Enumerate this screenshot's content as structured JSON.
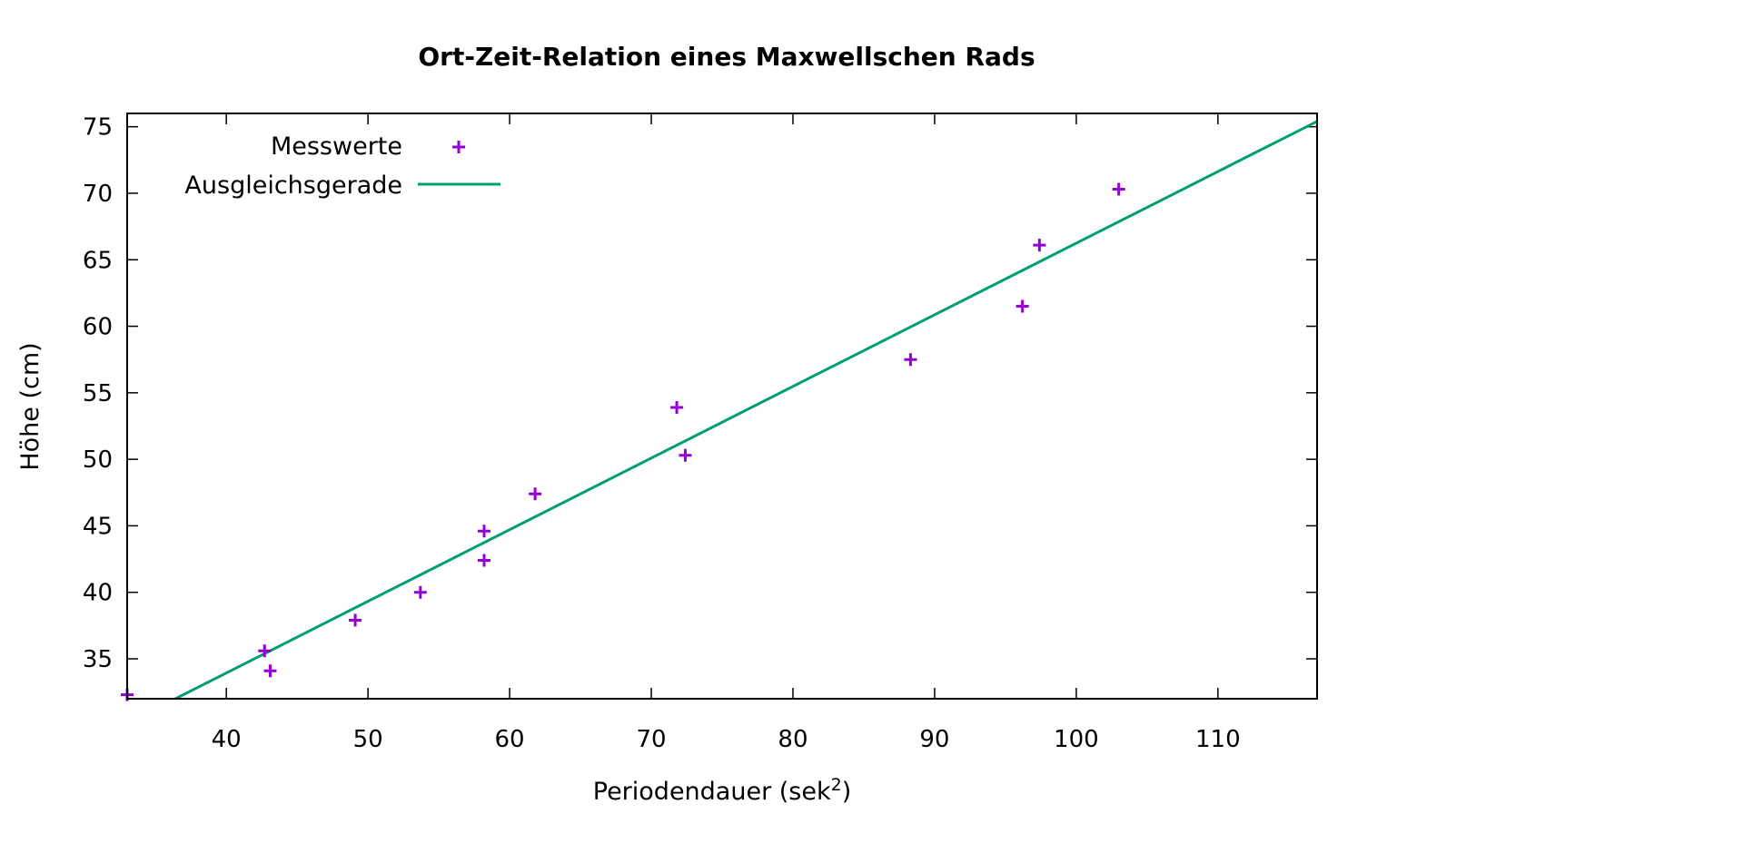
{
  "chart_data": {
    "type": "scatter",
    "title": "Ort-Zeit-Relation eines Maxwellschen Rads",
    "xlabel_main": "Periodendauer (sek",
    "xlabel_sup": "2",
    "xlabel_close": ")",
    "ylabel": "Höhe (cm)",
    "xlim": [
      33,
      117
    ],
    "ylim": [
      32,
      76
    ],
    "x_ticks": [
      40,
      50,
      60,
      70,
      80,
      90,
      100,
      110
    ],
    "y_ticks": [
      35,
      40,
      45,
      50,
      55,
      60,
      65,
      70,
      75
    ],
    "grid": false,
    "legend_position": "top-left",
    "series": [
      {
        "name": "Messwerte",
        "kind": "points",
        "marker": "plus",
        "color": "#9400d3",
        "x": [
          33.0,
          42.7,
          43.1,
          49.1,
          53.7,
          58.2,
          58.2,
          61.8,
          71.8,
          72.4,
          88.3,
          96.2,
          97.4,
          103.0
        ],
        "y": [
          32.3,
          35.6,
          34.1,
          37.9,
          40.0,
          42.4,
          44.6,
          47.4,
          53.9,
          50.3,
          57.5,
          61.5,
          66.1,
          70.3
        ]
      },
      {
        "name": "Ausgleichsgerade",
        "kind": "line",
        "color": "#009e73",
        "x": [
          36.4,
          117.0
        ],
        "y": [
          32.0,
          75.4
        ]
      }
    ]
  }
}
